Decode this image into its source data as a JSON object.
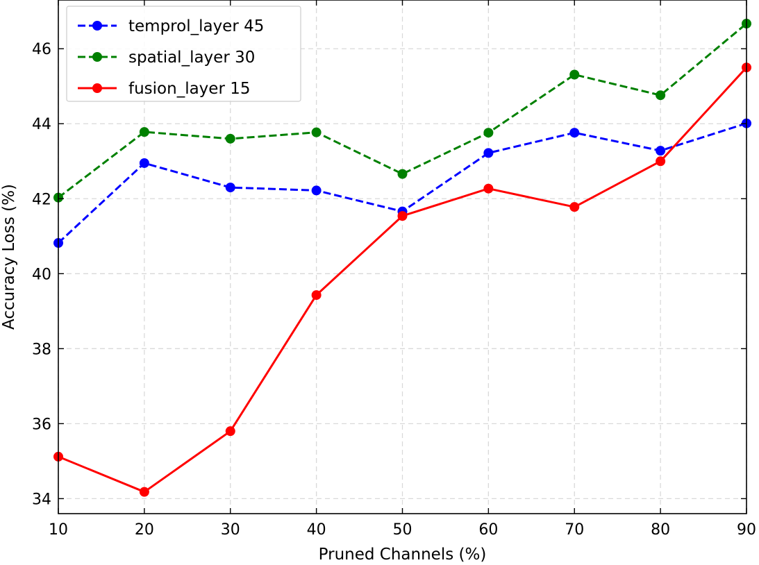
{
  "chart_data": {
    "type": "line",
    "title": "",
    "xlabel": "Pruned Channels (%)",
    "ylabel": "Accuracy Loss (%)",
    "xlim": [
      10,
      90
    ],
    "ylim": [
      33.6,
      47.3
    ],
    "xticks": [
      10,
      20,
      30,
      40,
      50,
      60,
      70,
      80,
      90
    ],
    "yticks": [
      34,
      36,
      38,
      40,
      42,
      44,
      46
    ],
    "grid": true,
    "grid_style": "dashed",
    "legend_position": "top-left",
    "x": [
      10,
      20,
      30,
      40,
      50,
      60,
      70,
      80,
      90
    ],
    "series": [
      {
        "name": "temprol_layer 45",
        "color": "#0000ff",
        "linestyle": "dashed",
        "marker": "circle",
        "values": [
          40.82,
          42.95,
          42.3,
          42.22,
          41.66,
          43.22,
          43.76,
          43.28,
          44.01
        ]
      },
      {
        "name": "spatial_layer 30",
        "color": "#008000",
        "linestyle": "dashed",
        "marker": "circle",
        "values": [
          42.03,
          43.78,
          43.6,
          43.77,
          42.66,
          43.76,
          45.31,
          44.76,
          46.67
        ]
      },
      {
        "name": "fusion_layer 15",
        "color": "#ff0000",
        "linestyle": "solid",
        "marker": "circle",
        "values": [
          35.12,
          34.18,
          35.8,
          39.43,
          41.54,
          42.27,
          41.78,
          43.0,
          45.5
        ]
      }
    ]
  }
}
